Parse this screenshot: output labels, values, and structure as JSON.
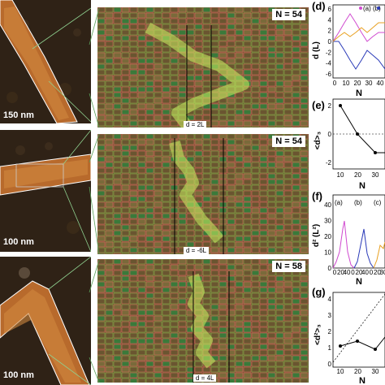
{
  "rows": [
    {
      "scale_bar": "150 nm",
      "n_label": "N = 54",
      "d_label": "d = 2L"
    },
    {
      "scale_bar": "100 nm",
      "n_label": "N = 54",
      "d_label": "d = -6L"
    },
    {
      "scale_bar": "100 nm",
      "n_label": "N = 58",
      "d_label": "d = 4L"
    }
  ],
  "plots": {
    "d": {
      "panel": "(d)",
      "ylabel": "d (L)",
      "xlabel": "N",
      "legend": [
        "(a)",
        "(b)"
      ],
      "yticks": [
        "6",
        "4",
        "2",
        "0",
        "-2",
        "-4",
        "-6"
      ],
      "xticks": [
        "0",
        "10",
        "20",
        "30",
        "40"
      ]
    },
    "e": {
      "panel": "(e)",
      "ylabel": "<d>₃",
      "xlabel": "N",
      "yticks": [
        "2",
        "0",
        "-2"
      ],
      "xticks": [
        "10",
        "20",
        "30"
      ]
    },
    "f": {
      "panel": "(f)",
      "ylabel": "d² (L²)",
      "xlabel": "N",
      "legend": [
        "(a)",
        "(b)",
        "(c)"
      ],
      "yticks": [
        "40",
        "30",
        "20",
        "10",
        "0"
      ],
      "xticks": [
        "0",
        "20",
        "40",
        "0",
        "20",
        "40",
        "0",
        "20",
        "30"
      ]
    },
    "g": {
      "panel": "(g)",
      "ylabel": "<d²>₃",
      "xlabel": "N",
      "yticks": [
        "4",
        "3",
        "2",
        "1",
        "0"
      ],
      "xticks": [
        "10",
        "20",
        "30"
      ]
    }
  },
  "colors": {
    "series_a": "#d04ad0",
    "series_b": "#2a3ab8",
    "series_c": "#e8a020",
    "zigzag": "#c8f060"
  },
  "chart_data": [
    {
      "type": "line",
      "title": "",
      "xlabel": "N",
      "ylabel": "d (L)",
      "ylim": [
        -6,
        6
      ],
      "xlim": [
        0,
        45
      ],
      "series": [
        {
          "name": "(a)",
          "x": [
            0,
            5,
            10,
            15,
            20,
            25,
            30,
            35,
            40,
            45
          ],
          "values": [
            0,
            2,
            4,
            6,
            4,
            2,
            0,
            1,
            2,
            2
          ]
        },
        {
          "name": "(b)",
          "x": [
            0,
            5,
            10,
            15,
            20,
            25,
            30,
            35,
            40,
            45
          ],
          "values": [
            0,
            0,
            -2,
            -4,
            -6,
            -4,
            -2,
            -3,
            -4,
            -6
          ]
        },
        {
          "name": "(c)",
          "x": [
            0,
            5,
            10,
            15,
            20,
            25,
            30,
            35,
            40,
            45
          ],
          "values": [
            0,
            1,
            2,
            1,
            2,
            3,
            2,
            3,
            4,
            4
          ]
        }
      ]
    },
    {
      "type": "line",
      "title": "",
      "xlabel": "N",
      "ylabel": "<d>₃",
      "ylim": [
        -2,
        2
      ],
      "xlim": [
        5,
        35
      ],
      "series": [
        {
          "x": [
            10,
            20,
            30,
            35
          ],
          "values": [
            2,
            0,
            -1.3,
            -1.3
          ]
        }
      ]
    },
    {
      "type": "line",
      "title": "",
      "xlabel": "N",
      "ylabel": "d² (L²)",
      "ylim": [
        0,
        40
      ],
      "series": [
        {
          "name": "(a)",
          "x": [
            0,
            5,
            10,
            15,
            20,
            25,
            30,
            35,
            40
          ],
          "values": [
            0,
            4,
            16,
            36,
            16,
            4,
            0,
            4,
            4
          ]
        },
        {
          "name": "(b)",
          "x": [
            0,
            5,
            10,
            15,
            20,
            25,
            30,
            35,
            40
          ],
          "values": [
            0,
            0,
            4,
            16,
            36,
            16,
            4,
            9,
            36
          ]
        },
        {
          "name": "(c)",
          "x": [
            0,
            5,
            10,
            15,
            20,
            25,
            30,
            35,
            40
          ],
          "values": [
            0,
            1,
            4,
            1,
            4,
            9,
            4,
            9,
            16
          ]
        }
      ]
    },
    {
      "type": "line",
      "title": "",
      "xlabel": "N",
      "ylabel": "<d²>₃",
      "ylim": [
        0,
        4
      ],
      "xlim": [
        5,
        35
      ],
      "series": [
        {
          "x": [
            10,
            20,
            30,
            35
          ],
          "values": [
            1,
            1.5,
            0.7,
            1.5
          ]
        },
        {
          "x": [
            5,
            35
          ],
          "values": [
            0.3,
            4
          ]
        }
      ]
    }
  ]
}
